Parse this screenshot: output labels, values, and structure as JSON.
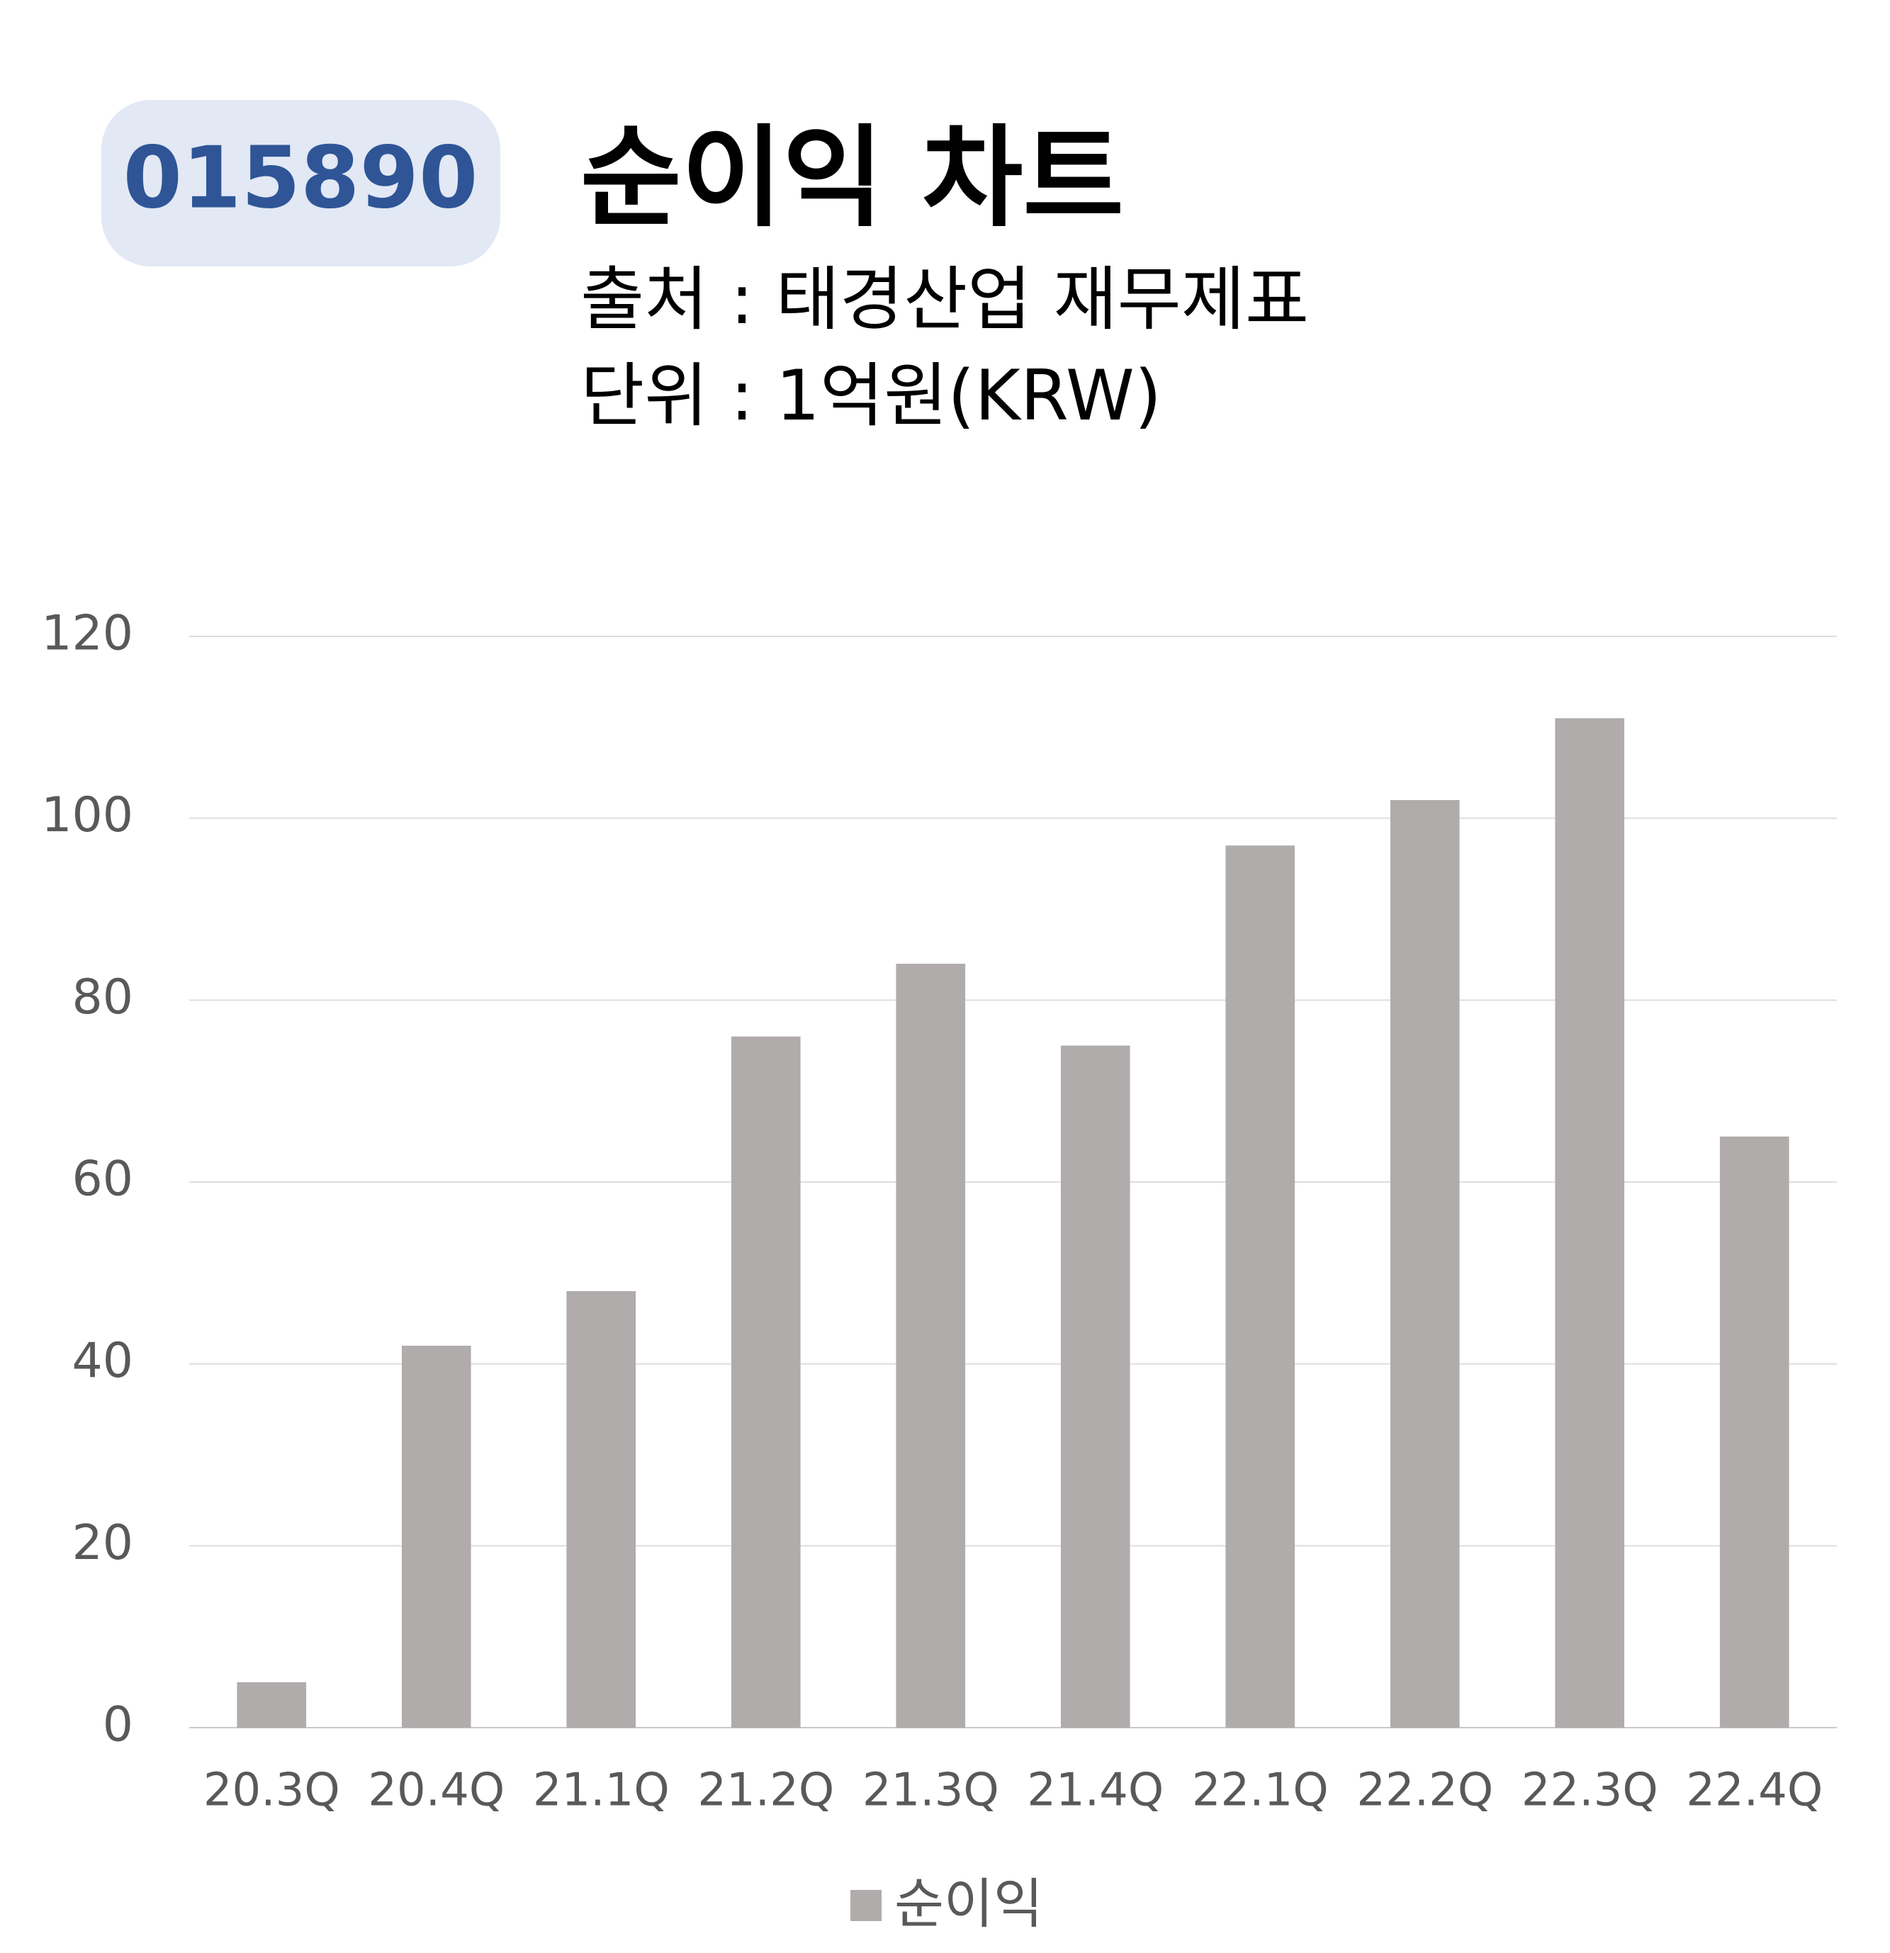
{
  "chart_data": {
    "type": "bar",
    "badge": "015890",
    "title": "순이익 차트",
    "subtitle": [
      "출처 : 태경산업 재무제표",
      "단위 : 1억원(KRW)"
    ],
    "categories": [
      "20.3Q",
      "20.4Q",
      "21.1Q",
      "21.2Q",
      "21.3Q",
      "21.4Q",
      "22.1Q",
      "22.2Q",
      "22.3Q",
      "22.4Q"
    ],
    "series": [
      {
        "name": "순이익",
        "color": "#afacab",
        "values": [
          5,
          42,
          48,
          76,
          84,
          75,
          97,
          102,
          111,
          65
        ]
      }
    ],
    "ylim": [
      0,
      120
    ],
    "yticks": [
      0,
      20,
      40,
      60,
      80,
      100,
      120
    ],
    "grid": true,
    "legend": "bottom"
  }
}
